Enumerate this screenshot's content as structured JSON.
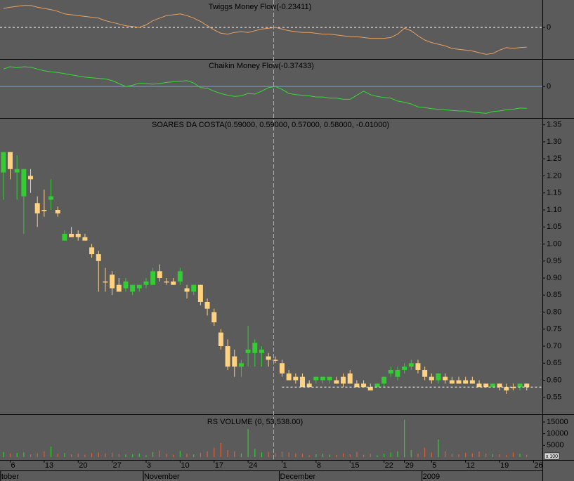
{
  "chart_data": [
    {
      "type": "line",
      "title": "Twiggs Money Flow(-0.23411)",
      "ylim": [
        -0.375,
        0.325
      ],
      "yticks": [
        0
      ],
      "grid": true,
      "grid_color": "#ffffff",
      "grid_dashed": true,
      "color": "#e8a060",
      "values": [
        0.225,
        0.24,
        0.25,
        0.26,
        0.26,
        0.24,
        0.225,
        0.21,
        0.19,
        0.16,
        0.15,
        0.14,
        0.13,
        0.12,
        0.11,
        0.08,
        0.06,
        0.04,
        0.02,
        0.01,
        0.0,
        0.03,
        0.08,
        0.11,
        0.14,
        0.15,
        0.16,
        0.14,
        0.11,
        0.07,
        0.02,
        -0.03,
        -0.07,
        -0.08,
        -0.06,
        -0.05,
        -0.06,
        -0.04,
        -0.02,
        -0.01,
        0.0,
        -0.02,
        -0.04,
        -0.05,
        -0.06,
        -0.06,
        -0.07,
        -0.08,
        -0.08,
        -0.09,
        -0.1,
        -0.11,
        -0.11,
        -0.12,
        -0.13,
        -0.13,
        -0.13,
        -0.12,
        -0.08,
        -0.01,
        -0.04,
        -0.1,
        -0.15,
        -0.18,
        -0.2,
        -0.22,
        -0.25,
        -0.26,
        -0.27,
        -0.28,
        -0.3,
        -0.32,
        -0.31,
        -0.27,
        -0.24,
        -0.25,
        -0.24,
        -0.23411
      ]
    },
    {
      "type": "line",
      "title": "Chaikin Money Flow(-0.37433)",
      "ylim": [
        -0.54,
        0.46
      ],
      "yticks": [
        0
      ],
      "grid": true,
      "grid_color": "#7799dd",
      "grid_dashed": false,
      "color": "#33dd33",
      "values": [
        0.3,
        0.34,
        0.32,
        0.34,
        0.33,
        0.3,
        0.27,
        0.25,
        0.24,
        0.22,
        0.2,
        0.18,
        0.16,
        0.15,
        0.14,
        0.13,
        0.1,
        0.05,
        0.0,
        0.02,
        0.06,
        0.05,
        0.04,
        0.05,
        0.07,
        0.08,
        0.09,
        0.1,
        0.06,
        -0.02,
        -0.03,
        -0.08,
        -0.12,
        -0.15,
        -0.17,
        -0.16,
        -0.12,
        -0.13,
        -0.08,
        -0.02,
        0.0,
        -0.05,
        -0.12,
        -0.14,
        -0.15,
        -0.16,
        -0.18,
        -0.18,
        -0.2,
        -0.2,
        -0.22,
        -0.22,
        -0.15,
        -0.08,
        -0.14,
        -0.17,
        -0.19,
        -0.2,
        -0.25,
        -0.27,
        -0.3,
        -0.35,
        -0.36,
        -0.38,
        -0.39,
        -0.4,
        -0.41,
        -0.42,
        -0.42,
        -0.44,
        -0.45,
        -0.46,
        -0.43,
        -0.42,
        -0.4,
        -0.39,
        -0.37,
        -0.37433
      ]
    },
    {
      "type": "candlestick",
      "title": "SOARES DA COSTA(0.59000, 0.59000, 0.57000, 0.58000, -0.01000)",
      "ylim": [
        0.5,
        1.368
      ],
      "yticks": [
        1.35,
        {
          "value": 1.3,
          "label": "1.30"
        },
        1.25,
        {
          "value": 1.2,
          "label": "1.20"
        },
        1.15,
        {
          "value": 1.1,
          "label": "1.10"
        },
        1.05,
        {
          "value": 1.0,
          "label": "1.00"
        },
        0.95,
        {
          "value": 0.9,
          "label": "0.90"
        },
        0.85,
        {
          "value": 0.8,
          "label": "0.80"
        },
        0.75,
        {
          "value": 0.7,
          "label": "0.70"
        },
        0.65,
        {
          "value": 0.6,
          "label": "0.60"
        },
        0.55
      ],
      "xlim": [
        -0.5,
        79.3
      ],
      "xticks": [
        {
          "value": 1,
          "label": "6"
        },
        {
          "value": 6,
          "label": "13"
        },
        {
          "value": 11,
          "label": "20"
        },
        {
          "value": 16,
          "label": "27"
        },
        {
          "value": 21,
          "label": "3"
        },
        {
          "value": 26,
          "label": "10"
        },
        {
          "value": 31,
          "label": "17"
        },
        {
          "value": 36,
          "label": "24"
        },
        {
          "value": 41,
          "label": "1"
        },
        {
          "value": 46,
          "label": "8"
        },
        {
          "value": 51,
          "label": "15"
        },
        {
          "value": 56,
          "label": "22"
        },
        {
          "value": 59,
          "label": "29"
        },
        {
          "value": 63,
          "label": "5"
        },
        {
          "value": 68,
          "label": "12"
        },
        {
          "value": 73,
          "label": "19"
        },
        {
          "value": 78,
          "label": "26"
        }
      ],
      "month_ticks": [
        {
          "value": 0,
          "label": "tober"
        },
        {
          "value": 21,
          "label": "November"
        },
        {
          "value": 41,
          "label": "December"
        },
        {
          "value": 62,
          "label": "2009"
        }
      ],
      "up_color": "#33cc33",
      "down_color": "#ffd27f",
      "open": [
        1.21,
        1.27,
        1.21,
        1.14,
        1.2,
        1.12,
        1.1,
        1.13,
        1.1,
        1.01,
        1.03,
        1.03,
        1.02,
        0.99,
        0.97,
        0.89,
        0.91,
        0.88,
        0.87,
        0.86,
        0.87,
        0.88,
        0.88,
        0.92,
        0.89,
        0.89,
        0.89,
        0.87,
        0.86,
        0.88,
        0.83,
        0.8,
        0.74,
        0.7,
        0.67,
        0.64,
        0.68,
        0.68,
        0.68,
        0.67,
        0.66,
        0.65,
        0.62,
        0.61,
        0.61,
        0.59,
        0.6,
        0.6,
        0.6,
        0.6,
        0.61,
        0.62,
        0.59,
        0.59,
        0.58,
        0.58,
        0.59,
        0.62,
        0.61,
        0.63,
        0.64,
        0.65,
        0.63,
        0.61,
        0.6,
        0.61,
        0.6,
        0.6,
        0.6,
        0.6,
        0.59,
        0.59,
        0.58,
        0.59,
        0.58,
        0.58,
        0.58,
        0.59
      ],
      "high": [
        1.27,
        1.27,
        1.26,
        1.22,
        1.22,
        1.14,
        1.16,
        1.19,
        1.11,
        1.04,
        1.05,
        1.04,
        1.03,
        1.0,
        0.98,
        0.93,
        0.92,
        0.9,
        0.9,
        0.88,
        0.88,
        0.9,
        0.93,
        0.94,
        0.9,
        0.9,
        0.93,
        0.88,
        0.88,
        0.88,
        0.84,
        0.81,
        0.75,
        0.72,
        0.69,
        0.66,
        0.76,
        0.72,
        0.7,
        0.68,
        0.67,
        0.66,
        0.63,
        0.62,
        0.62,
        0.6,
        0.61,
        0.61,
        0.61,
        0.61,
        0.62,
        0.63,
        0.6,
        0.6,
        0.59,
        0.59,
        0.61,
        0.64,
        0.64,
        0.65,
        0.66,
        0.66,
        0.64,
        0.62,
        0.62,
        0.62,
        0.61,
        0.61,
        0.61,
        0.61,
        0.6,
        0.59,
        0.59,
        0.59,
        0.59,
        0.59,
        0.59,
        0.59
      ],
      "low": [
        1.13,
        1.19,
        1.13,
        1.03,
        1.15,
        1.05,
        1.08,
        1.1,
        1.08,
        1.01,
        1.02,
        1.01,
        1.01,
        0.96,
        0.86,
        0.86,
        0.85,
        0.86,
        0.86,
        0.85,
        0.86,
        0.87,
        0.88,
        0.89,
        0.88,
        0.88,
        0.88,
        0.84,
        0.85,
        0.82,
        0.79,
        0.76,
        0.69,
        0.63,
        0.61,
        0.61,
        0.64,
        0.64,
        0.64,
        0.64,
        0.65,
        0.61,
        0.6,
        0.59,
        0.58,
        0.58,
        0.59,
        0.59,
        0.59,
        0.59,
        0.58,
        0.59,
        0.58,
        0.58,
        0.57,
        0.58,
        0.58,
        0.61,
        0.6,
        0.62,
        0.63,
        0.62,
        0.6,
        0.59,
        0.59,
        0.59,
        0.59,
        0.59,
        0.59,
        0.59,
        0.58,
        0.58,
        0.58,
        0.57,
        0.56,
        0.57,
        0.57,
        0.57
      ],
      "close": [
        1.27,
        1.22,
        1.22,
        1.22,
        1.19,
        1.09,
        1.1,
        1.14,
        1.09,
        1.03,
        1.02,
        1.02,
        1.01,
        0.97,
        0.95,
        0.89,
        0.87,
        0.86,
        0.89,
        0.88,
        0.88,
        0.89,
        0.92,
        0.9,
        0.89,
        0.88,
        0.92,
        0.86,
        0.88,
        0.83,
        0.81,
        0.77,
        0.7,
        0.64,
        0.64,
        0.65,
        0.69,
        0.71,
        0.69,
        0.66,
        0.66,
        0.62,
        0.6,
        0.6,
        0.58,
        0.58,
        0.61,
        0.61,
        0.61,
        0.59,
        0.59,
        0.59,
        0.58,
        0.58,
        0.57,
        0.59,
        0.61,
        0.63,
        0.63,
        0.64,
        0.65,
        0.63,
        0.61,
        0.6,
        0.62,
        0.6,
        0.59,
        0.59,
        0.59,
        0.59,
        0.58,
        0.58,
        0.59,
        0.58,
        0.57,
        0.58,
        0.59,
        0.58
      ]
    },
    {
      "type": "volume",
      "title": "RS VOLUME (0, 53,538.00)",
      "unit_label": "x 100",
      "ylim": [
        0,
        18000
      ],
      "yticks": [
        15000,
        10000,
        5000
      ],
      "up_color": "#33cc33",
      "down_color": "#d9603b",
      "values": [
        2200,
        1500,
        1800,
        2000,
        1200,
        1600,
        2500,
        4500,
        1400,
        1800,
        1200,
        1500,
        1000,
        1700,
        2000,
        1600,
        1900,
        1300,
        1100,
        1200,
        1500,
        800,
        2200,
        2800,
        1400,
        1000,
        2600,
        1500,
        1200,
        1800,
        2500,
        4000,
        6000,
        3000,
        2500,
        1600,
        12000,
        3500,
        2000,
        2200,
        1800,
        2400,
        2000,
        1600,
        1400,
        800,
        1200,
        1500,
        1000,
        900,
        1600,
        1200,
        2200,
        1000,
        1400,
        800,
        1500,
        2000,
        2500,
        16000,
        3000,
        1500,
        4000,
        2000,
        7500,
        2500,
        1500,
        1200,
        1800,
        1600,
        2400,
        1500,
        1300,
        1200,
        900,
        2000,
        1400,
        1000
      ]
    }
  ]
}
